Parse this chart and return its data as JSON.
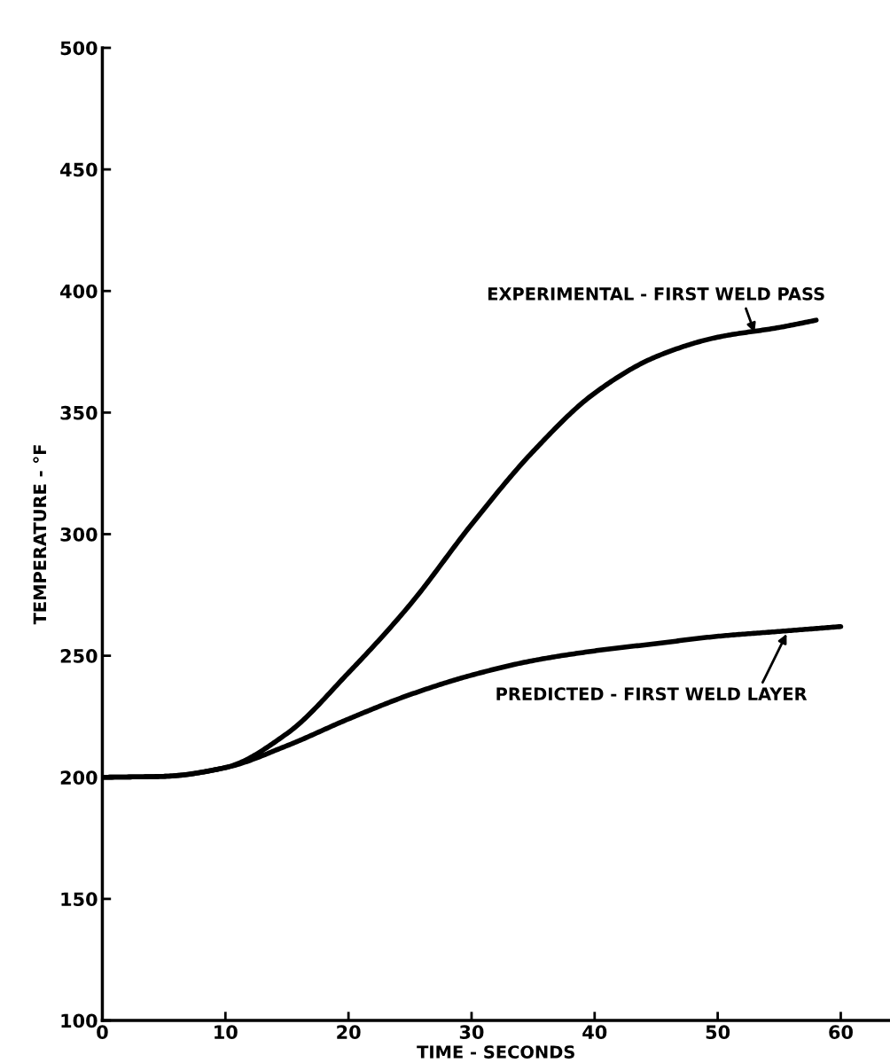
{
  "chart_data": {
    "type": "line",
    "xlabel": "TIME - SECONDS",
    "ylabel": "TEMPERATURE - °F",
    "xlim": [
      0,
      64
    ],
    "xticks": [
      0,
      10,
      20,
      30,
      40,
      50,
      60
    ],
    "ylim": [
      100,
      500
    ],
    "yticks": [
      100,
      150,
      200,
      250,
      300,
      350,
      400,
      450,
      500
    ],
    "grid": false,
    "legend": false,
    "marker": "none",
    "line_style": "solid",
    "series": [
      {
        "color": "#000000",
        "x": [
          0,
          5,
          10,
          15,
          20,
          25,
          30,
          35,
          40,
          45,
          50,
          55,
          58
        ],
        "values": [
          200,
          200.4,
          204,
          218,
          243,
          271,
          304,
          334,
          358,
          373,
          381,
          385,
          388
        ]
      },
      {
        "color": "#000000",
        "x": [
          0,
          5,
          10,
          15,
          20,
          25,
          30,
          35,
          40,
          45,
          50,
          55,
          60
        ],
        "values": [
          200,
          200.4,
          204,
          213,
          224,
          234,
          242,
          248,
          252,
          255,
          258,
          260,
          262
        ]
      }
    ],
    "annotations": [
      {
        "text": "EXPERIMENTAL - FIRST WELD PASS",
        "x": 53,
        "y": 383
      },
      {
        "text": "PREDICTED - FIRST WELD LAYER",
        "x": 55.6,
        "y": 259
      }
    ]
  }
}
